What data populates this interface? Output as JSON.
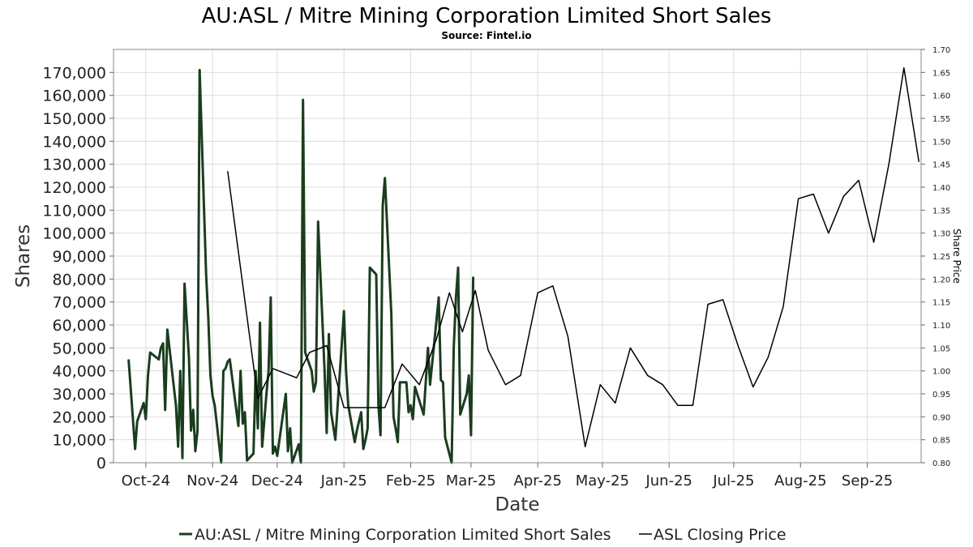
{
  "chart_data": {
    "type": "line",
    "title": "AU:ASL / Mitre Mining Corporation Limited Short Sales",
    "subtitle": "Source: Fintel.io",
    "xlabel": "Date",
    "ylabel": "Shares",
    "y2label": "Share Price",
    "ylim": [
      0,
      180000
    ],
    "y2lim": [
      0.8,
      1.7
    ],
    "yticks": [
      "0",
      "10,000",
      "20,000",
      "30,000",
      "40,000",
      "50,000",
      "60,000",
      "70,000",
      "80,000",
      "90,000",
      "100,000",
      "110,000",
      "120,000",
      "130,000",
      "140,000",
      "150,000",
      "160,000",
      "170,000"
    ],
    "y2ticks": [
      "0.80",
      "0.85",
      "0.90",
      "0.95",
      "1.00",
      "1.05",
      "1.10",
      "1.15",
      "1.20",
      "1.25",
      "1.30",
      "1.35",
      "1.40",
      "1.45",
      "1.50",
      "1.55",
      "1.60",
      "1.65",
      "1.70"
    ],
    "xlim": [
      "2024-09-16",
      "2025-09-26"
    ],
    "xticks": [
      {
        "label": "Oct-24",
        "date": "2024-10-01"
      },
      {
        "label": "Nov-24",
        "date": "2024-11-01"
      },
      {
        "label": "Dec-24",
        "date": "2024-12-01"
      },
      {
        "label": "Jan-25",
        "date": "2025-01-01"
      },
      {
        "label": "Feb-25",
        "date": "2025-02-01"
      },
      {
        "label": "Mar-25",
        "date": "2025-03-01"
      },
      {
        "label": "Apr-25",
        "date": "2025-04-01"
      },
      {
        "label": "May-25",
        "date": "2025-05-01"
      },
      {
        "label": "Jun-25",
        "date": "2025-06-01"
      },
      {
        "label": "Jul-25",
        "date": "2025-07-01"
      },
      {
        "label": "Aug-25",
        "date": "2025-08-01"
      },
      {
        "label": "Sep-25",
        "date": "2025-09-01"
      }
    ],
    "grid": true,
    "legend_position": "bottom",
    "series": [
      {
        "name": "AU:ASL / Mitre Mining Corporation Limited Short Sales",
        "axis": "left",
        "color": "#1a3d1e",
        "points": [
          {
            "x": "2024-09-23",
            "y": 45000
          },
          {
            "x": "2024-09-26",
            "y": 6000
          },
          {
            "x": "2024-09-27",
            "y": 18000
          },
          {
            "x": "2024-09-30",
            "y": 26000
          },
          {
            "x": "2024-10-01",
            "y": 19000
          },
          {
            "x": "2024-10-02",
            "y": 38000
          },
          {
            "x": "2024-10-03",
            "y": 48000
          },
          {
            "x": "2024-10-07",
            "y": 45000
          },
          {
            "x": "2024-10-08",
            "y": 50000
          },
          {
            "x": "2024-10-09",
            "y": 52000
          },
          {
            "x": "2024-10-10",
            "y": 23000
          },
          {
            "x": "2024-10-11",
            "y": 58000
          },
          {
            "x": "2024-10-14",
            "y": 33000
          },
          {
            "x": "2024-10-15",
            "y": 25000
          },
          {
            "x": "2024-10-16",
            "y": 7000
          },
          {
            "x": "2024-10-17",
            "y": 40000
          },
          {
            "x": "2024-10-18",
            "y": 2000
          },
          {
            "x": "2024-10-19",
            "y": 78000
          },
          {
            "x": "2024-10-21",
            "y": 46000
          },
          {
            "x": "2024-10-22",
            "y": 14000
          },
          {
            "x": "2024-10-23",
            "y": 23000
          },
          {
            "x": "2024-10-24",
            "y": 5000
          },
          {
            "x": "2024-10-25",
            "y": 14000
          },
          {
            "x": "2024-10-26",
            "y": 171000
          },
          {
            "x": "2024-10-29",
            "y": 82000
          },
          {
            "x": "2024-10-30",
            "y": 63000
          },
          {
            "x": "2024-10-31",
            "y": 38000
          },
          {
            "x": "2024-11-01",
            "y": 29000
          },
          {
            "x": "2024-11-02",
            "y": 25000
          },
          {
            "x": "2024-11-05",
            "y": 0
          },
          {
            "x": "2024-11-06",
            "y": 40000
          },
          {
            "x": "2024-11-07",
            "y": 41000
          },
          {
            "x": "2024-11-08",
            "y": 44000
          },
          {
            "x": "2024-11-09",
            "y": 45000
          },
          {
            "x": "2024-11-13",
            "y": 16000
          },
          {
            "x": "2024-11-14",
            "y": 40000
          },
          {
            "x": "2024-11-15",
            "y": 17000
          },
          {
            "x": "2024-11-16",
            "y": 22000
          },
          {
            "x": "2024-11-17",
            "y": 1000
          },
          {
            "x": "2024-11-20",
            "y": 4000
          },
          {
            "x": "2024-11-21",
            "y": 40000
          },
          {
            "x": "2024-11-22",
            "y": 15000
          },
          {
            "x": "2024-11-23",
            "y": 61000
          },
          {
            "x": "2024-11-24",
            "y": 7000
          },
          {
            "x": "2024-11-25",
            "y": 18000
          },
          {
            "x": "2024-11-26",
            "y": 30000
          },
          {
            "x": "2024-11-27",
            "y": 40000
          },
          {
            "x": "2024-11-28",
            "y": 72000
          },
          {
            "x": "2024-11-29",
            "y": 4000
          },
          {
            "x": "2024-11-30",
            "y": 7000
          },
          {
            "x": "2024-12-01",
            "y": 3000
          },
          {
            "x": "2024-12-05",
            "y": 30000
          },
          {
            "x": "2024-12-06",
            "y": 5000
          },
          {
            "x": "2024-12-07",
            "y": 15000
          },
          {
            "x": "2024-12-08",
            "y": 0
          },
          {
            "x": "2024-12-11",
            "y": 8000
          },
          {
            "x": "2024-12-12",
            "y": 0
          },
          {
            "x": "2024-12-13",
            "y": 158000
          },
          {
            "x": "2024-12-14",
            "y": 48000
          },
          {
            "x": "2024-12-17",
            "y": 40000
          },
          {
            "x": "2024-12-18",
            "y": 31000
          },
          {
            "x": "2024-12-19",
            "y": 35000
          },
          {
            "x": "2024-12-20",
            "y": 105000
          },
          {
            "x": "2024-12-23",
            "y": 40000
          },
          {
            "x": "2024-12-24",
            "y": 13000
          },
          {
            "x": "2024-12-25",
            "y": 56000
          },
          {
            "x": "2024-12-26",
            "y": 22000
          },
          {
            "x": "2024-12-28",
            "y": 10000
          },
          {
            "x": "2025-01-01",
            "y": 66000
          },
          {
            "x": "2025-01-02",
            "y": 40000
          },
          {
            "x": "2025-01-03",
            "y": 25000
          },
          {
            "x": "2025-01-06",
            "y": 9000
          },
          {
            "x": "2025-01-07",
            "y": 14000
          },
          {
            "x": "2025-01-09",
            "y": 22000
          },
          {
            "x": "2025-01-10",
            "y": 6000
          },
          {
            "x": "2025-01-11",
            "y": 10000
          },
          {
            "x": "2025-01-12",
            "y": 15000
          },
          {
            "x": "2025-01-13",
            "y": 85000
          },
          {
            "x": "2025-01-16",
            "y": 82000
          },
          {
            "x": "2025-01-17",
            "y": 25000
          },
          {
            "x": "2025-01-18",
            "y": 12000
          },
          {
            "x": "2025-01-19",
            "y": 112000
          },
          {
            "x": "2025-01-20",
            "y": 124000
          },
          {
            "x": "2025-01-23",
            "y": 65000
          },
          {
            "x": "2025-01-24",
            "y": 20000
          },
          {
            "x": "2025-01-25",
            "y": 15000
          },
          {
            "x": "2025-01-26",
            "y": 9000
          },
          {
            "x": "2025-01-27",
            "y": 35000
          },
          {
            "x": "2025-01-30",
            "y": 35000
          },
          {
            "x": "2025-01-31",
            "y": 22000
          },
          {
            "x": "2025-02-01",
            "y": 25000
          },
          {
            "x": "2025-02-02",
            "y": 19000
          },
          {
            "x": "2025-02-03",
            "y": 33000
          },
          {
            "x": "2025-02-07",
            "y": 21000
          },
          {
            "x": "2025-02-09",
            "y": 50000
          },
          {
            "x": "2025-02-10",
            "y": 34000
          },
          {
            "x": "2025-02-14",
            "y": 72000
          },
          {
            "x": "2025-02-15",
            "y": 36000
          },
          {
            "x": "2025-02-16",
            "y": 35000
          },
          {
            "x": "2025-02-17",
            "y": 11000
          },
          {
            "x": "2025-02-20",
            "y": 0
          },
          {
            "x": "2025-02-21",
            "y": 50000
          },
          {
            "x": "2025-02-22",
            "y": 72000
          },
          {
            "x": "2025-02-23",
            "y": 85000
          },
          {
            "x": "2025-02-24",
            "y": 21000
          },
          {
            "x": "2025-02-27",
            "y": 30000
          },
          {
            "x": "2025-02-28",
            "y": 38000
          },
          {
            "x": "2025-03-01",
            "y": 12000
          },
          {
            "x": "2025-03-02",
            "y": 81000
          }
        ]
      },
      {
        "name": "ASL Closing Price",
        "axis": "right",
        "color": "#000000",
        "points": [
          {
            "x": "2024-11-08",
            "y": 1.435
          },
          {
            "x": "2024-11-22",
            "y": 0.94
          },
          {
            "x": "2024-11-29",
            "y": 1.005
          },
          {
            "x": "2024-12-10",
            "y": 0.985
          },
          {
            "x": "2024-12-16",
            "y": 1.04
          },
          {
            "x": "2024-12-24",
            "y": 1.055
          },
          {
            "x": "2025-01-01",
            "y": 0.92
          },
          {
            "x": "2025-01-20",
            "y": 0.92
          },
          {
            "x": "2025-01-28",
            "y": 1.015
          },
          {
            "x": "2025-02-05",
            "y": 0.97
          },
          {
            "x": "2025-02-13",
            "y": 1.07
          },
          {
            "x": "2025-02-19",
            "y": 1.17
          },
          {
            "x": "2025-02-25",
            "y": 1.085
          },
          {
            "x": "2025-03-03",
            "y": 1.175
          },
          {
            "x": "2025-03-09",
            "y": 1.045
          },
          {
            "x": "2025-03-17",
            "y": 0.97
          },
          {
            "x": "2025-03-24",
            "y": 0.99
          },
          {
            "x": "2025-04-01",
            "y": 1.17
          },
          {
            "x": "2025-04-08",
            "y": 1.185
          },
          {
            "x": "2025-04-15",
            "y": 1.075
          },
          {
            "x": "2025-04-23",
            "y": 0.835
          },
          {
            "x": "2025-04-30",
            "y": 0.97
          },
          {
            "x": "2025-05-07",
            "y": 0.93
          },
          {
            "x": "2025-05-14",
            "y": 1.05
          },
          {
            "x": "2025-05-22",
            "y": 0.99
          },
          {
            "x": "2025-05-29",
            "y": 0.97
          },
          {
            "x": "2025-06-05",
            "y": 0.925
          },
          {
            "x": "2025-06-12",
            "y": 0.925
          },
          {
            "x": "2025-06-19",
            "y": 1.145
          },
          {
            "x": "2025-06-26",
            "y": 1.155
          },
          {
            "x": "2025-07-03",
            "y": 1.055
          },
          {
            "x": "2025-07-10",
            "y": 0.965
          },
          {
            "x": "2025-07-17",
            "y": 1.03
          },
          {
            "x": "2025-07-24",
            "y": 1.14
          },
          {
            "x": "2025-07-31",
            "y": 1.375
          },
          {
            "x": "2025-08-07",
            "y": 1.385
          },
          {
            "x": "2025-08-14",
            "y": 1.3
          },
          {
            "x": "2025-08-21",
            "y": 1.38
          },
          {
            "x": "2025-08-28",
            "y": 1.415
          },
          {
            "x": "2025-09-04",
            "y": 1.28
          },
          {
            "x": "2025-09-11",
            "y": 1.45
          },
          {
            "x": "2025-09-18",
            "y": 1.66
          },
          {
            "x": "2025-09-25",
            "y": 1.455
          }
        ]
      }
    ]
  }
}
